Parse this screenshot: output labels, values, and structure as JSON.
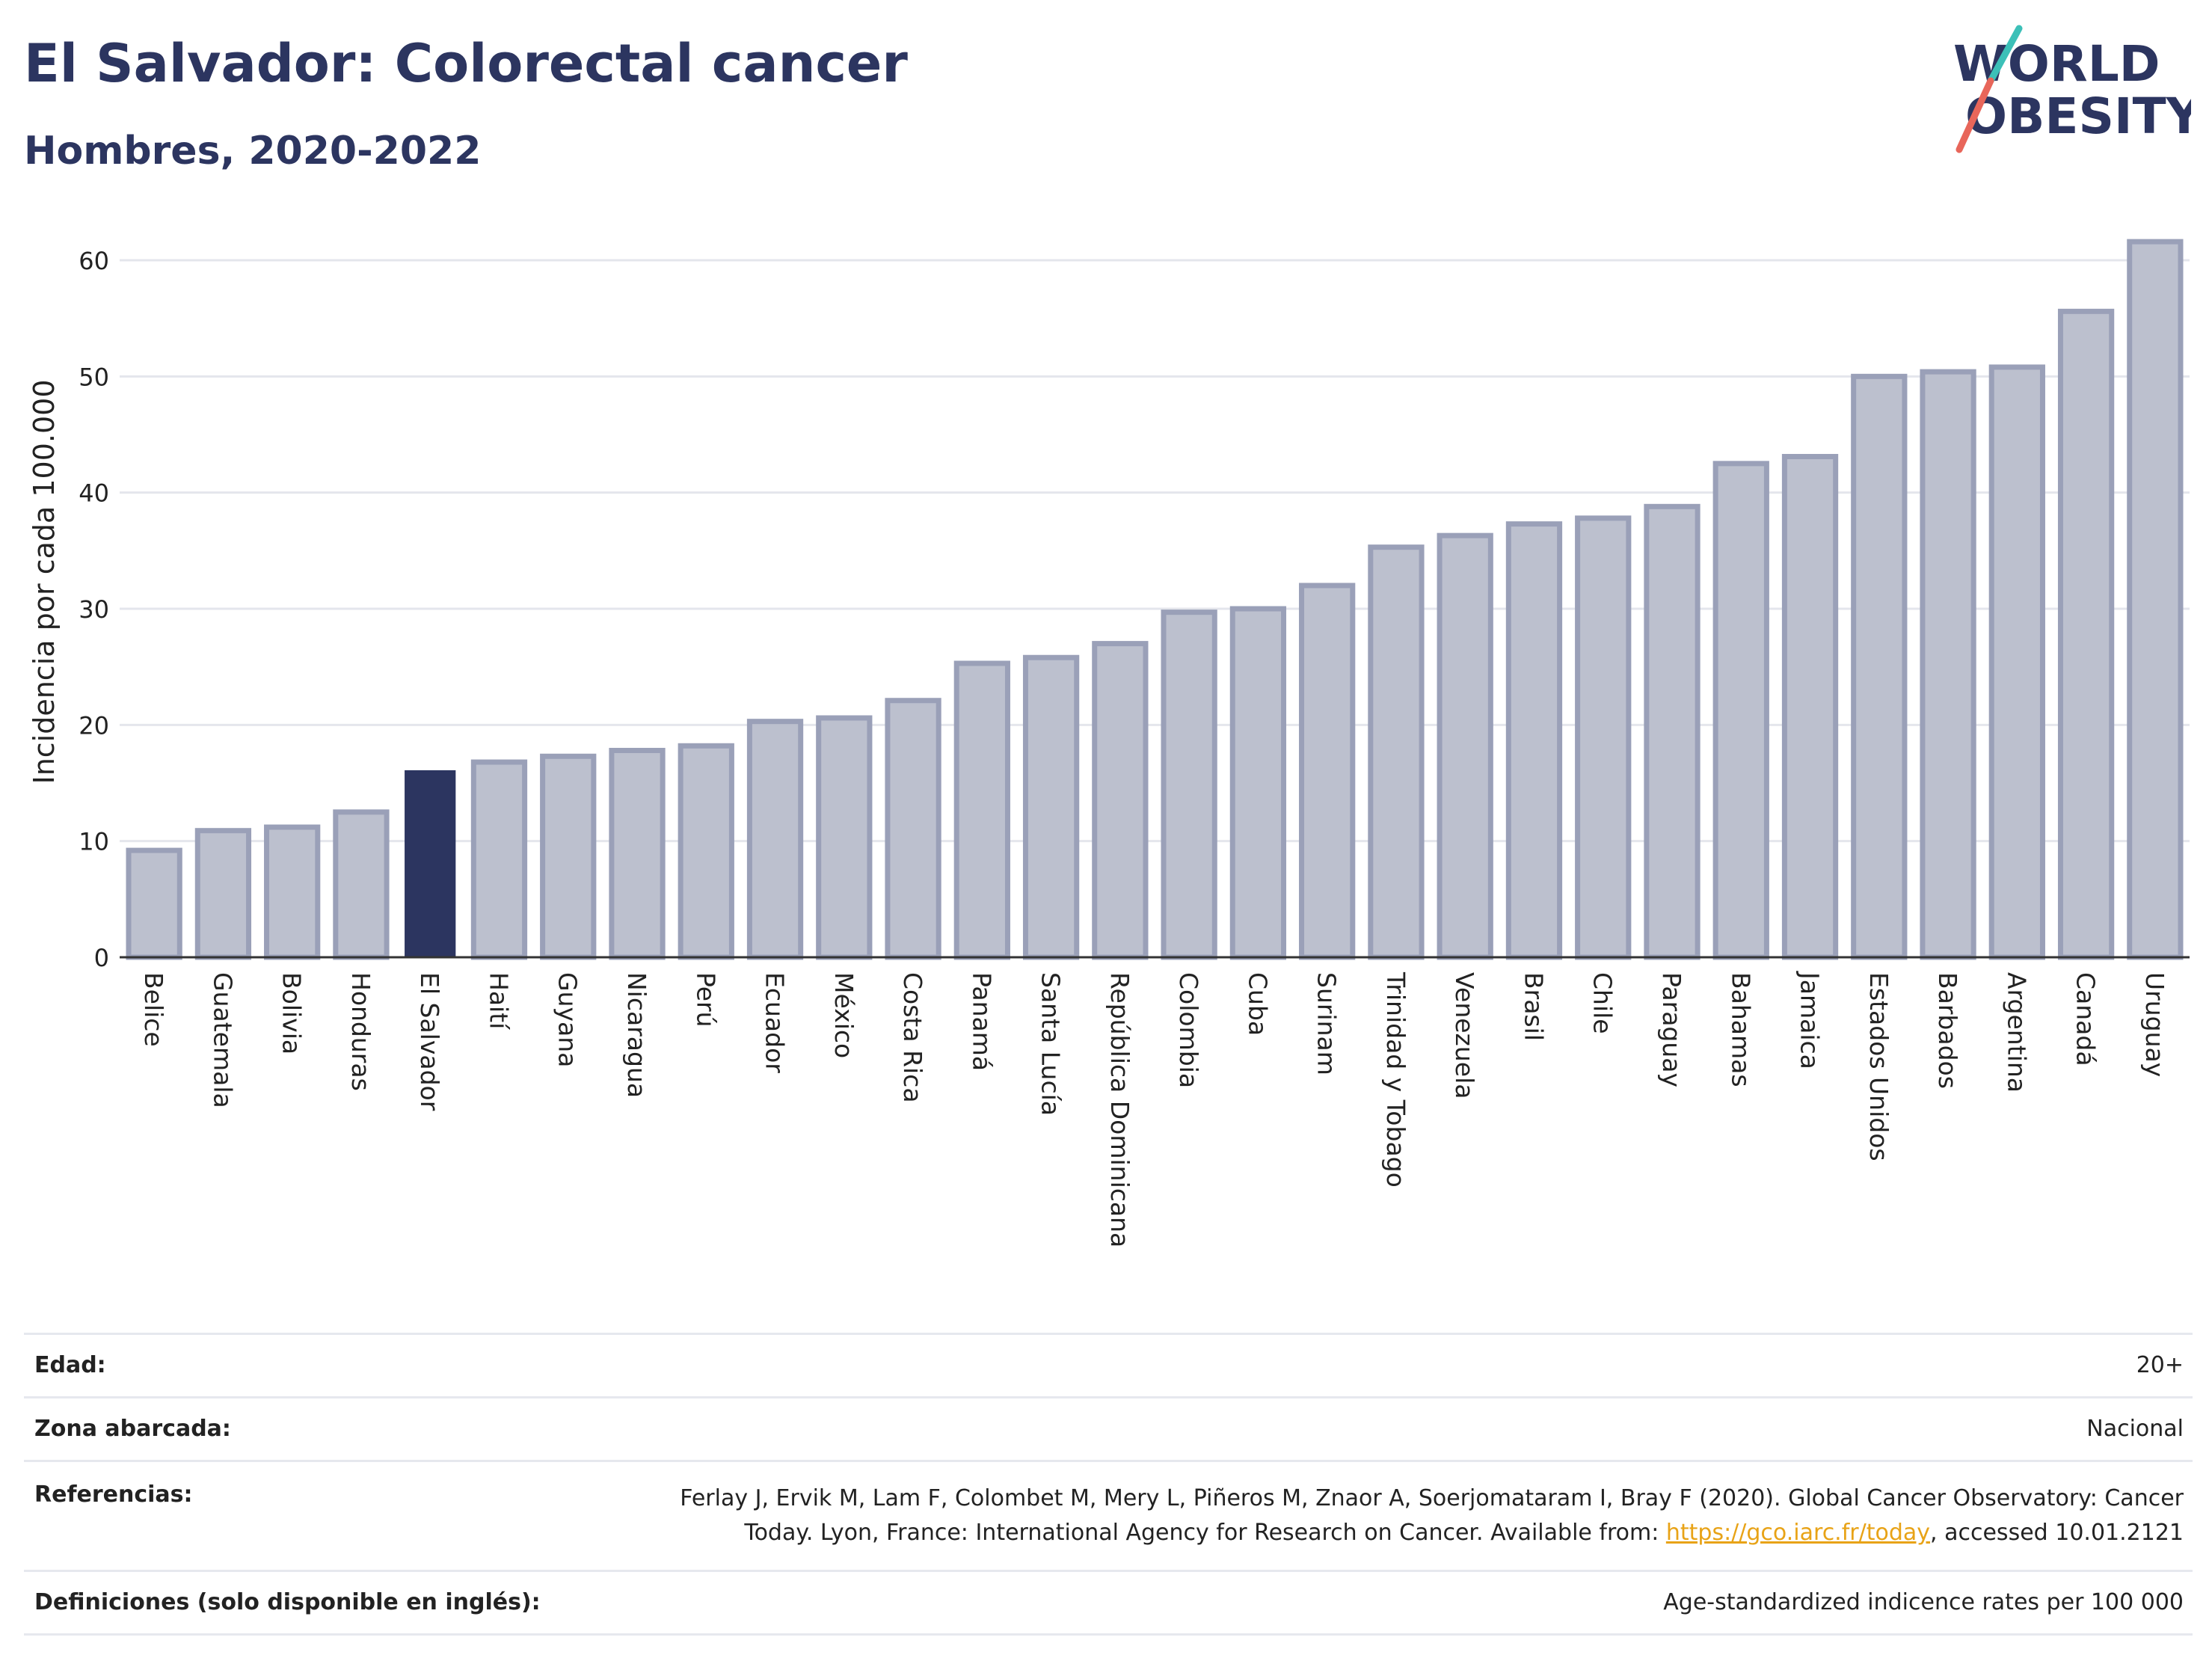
{
  "header": {
    "title": "El Salvador: Colorectal cancer",
    "subtitle": "Hombres, 2020-2022"
  },
  "logo": {
    "line1": "WORLD",
    "line2": "OBESITY"
  },
  "colors": {
    "bar": "#bcc0ce",
    "bar_stroke": "#9aa0b8",
    "highlight": "#2c3560",
    "grid": "#e4e6ec",
    "axis": "#333333"
  },
  "chart_data": {
    "type": "bar",
    "ylabel": "Incidencia por cada 100.000",
    "ylim": [
      0,
      65
    ],
    "yticks": [
      0,
      10,
      20,
      30,
      40,
      50,
      60
    ],
    "highlight": "El Salvador",
    "grid": true,
    "categories": [
      "Belice",
      "Guatemala",
      "Bolivia",
      "Honduras",
      "El Salvador",
      "Haití",
      "Guyana",
      "Nicaragua",
      "Perú",
      "Ecuador",
      "México",
      "Costa Rica",
      "Panamá",
      "Santa Lucía",
      "República Dominicana",
      "Colombia",
      "Cuba",
      "Surinam",
      "Trinidad y Tobago",
      "Venezuela",
      "Brasil",
      "Chile",
      "Paraguay",
      "Bahamas",
      "Jamaica",
      "Estados Unidos",
      "Barbados",
      "Argentina",
      "Canadá",
      "Uruguay"
    ],
    "values": [
      9.2,
      10.9,
      11.2,
      12.5,
      16.1,
      16.8,
      17.3,
      17.8,
      18.2,
      20.3,
      20.6,
      22.1,
      25.3,
      25.8,
      27.0,
      29.7,
      30.0,
      32.0,
      35.3,
      36.3,
      37.3,
      37.8,
      38.8,
      42.5,
      43.1,
      50.0,
      50.4,
      50.8,
      55.6,
      61.6
    ]
  },
  "meta": {
    "age_label": "Edad:",
    "age_value": "20+",
    "zone_label": "Zona abarcada:",
    "zone_value": "Nacional",
    "ref_label": "Referencias:",
    "ref_text_1": "Ferlay J, Ervik M, Lam F, Colombet M, Mery L, Piñeros M, Znaor A, Soerjomataram I, Bray F (2020). Global Cancer Observatory: Cancer",
    "ref_text_2": "Today. Lyon, France: International Agency for Research on Cancer. Available from: ",
    "ref_link": "https://gco.iarc.fr/today",
    "ref_text_3": ", accessed 10.01.2121",
    "def_label": "Definiciones (solo disponible en inglés):",
    "def_value": "Age-standardized indicence rates per 100 000"
  }
}
